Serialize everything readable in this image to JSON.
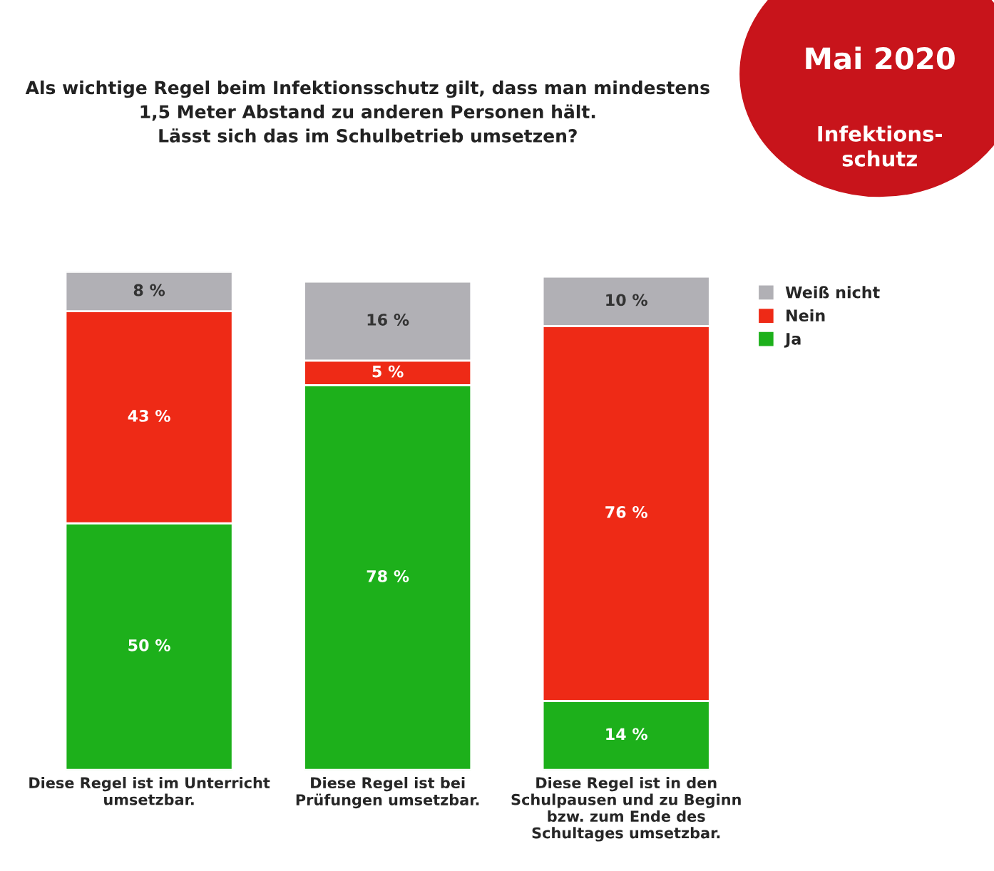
{
  "chart_data": {
    "type": "bar",
    "title": "Als wichtige Regel beim Infektionsschutz gilt, dass man mindestens\n1,5 Meter Abstand zu anderen Personen hält.\nLässt sich das im Schulbetrieb umsetzen?",
    "annotations": [
      "Mai 2020",
      "Infektions-\nschutz"
    ],
    "categories": [
      "Diese Regel ist im Unterricht\numsetzbar.",
      "Diese Regel ist bei\nPrüfungen umsetzbar.",
      "Diese Regel ist in den\nSchulpausen und zu Beginn\nbzw. zum Ende des\nSchultages umsetzbar."
    ],
    "stacked": true,
    "legend": "top right",
    "grid": false,
    "series": [
      {
        "name": "Ja",
        "color": "#1db01b",
        "values": [
          50,
          78,
          14
        ],
        "value_labels": [
          "50 %",
          "78 %",
          "14 %"
        ]
      },
      {
        "name": "Nein",
        "color": "#ee2a16",
        "values": [
          43,
          5,
          76
        ],
        "value_labels": [
          "43 %",
          "5 %",
          "76 %"
        ]
      },
      {
        "name": "Weiß nicht",
        "color": "#b1b0b5",
        "values": [
          8,
          16,
          10
        ],
        "value_labels": [
          "8 %",
          "16 %",
          "10 %"
        ]
      }
    ]
  }
}
